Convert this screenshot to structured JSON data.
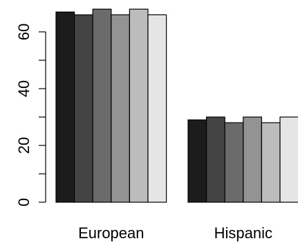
{
  "chart_data": {
    "type": "bar",
    "categories": [
      "European",
      "Hispanic"
    ],
    "series": [
      {
        "values": [
          67,
          29
        ],
        "color": "#1c1c1c"
      },
      {
        "values": [
          66,
          30
        ],
        "color": "#444444"
      },
      {
        "values": [
          68,
          28
        ],
        "color": "#6b6b6b"
      },
      {
        "values": [
          66,
          30
        ],
        "color": "#939393"
      },
      {
        "values": [
          68,
          28
        ],
        "color": "#bcbcbc"
      },
      {
        "values": [
          66,
          30
        ],
        "color": "#e5e5e5"
      }
    ],
    "y_ticks": [
      0,
      20,
      40,
      60
    ],
    "y_tick_labels": [
      "0",
      "20",
      "40",
      "60"
    ],
    "ylim": [
      0,
      69
    ],
    "grouped": true,
    "grid": false,
    "legend": "none",
    "title": "",
    "xlabel": "",
    "ylabel": ""
  }
}
